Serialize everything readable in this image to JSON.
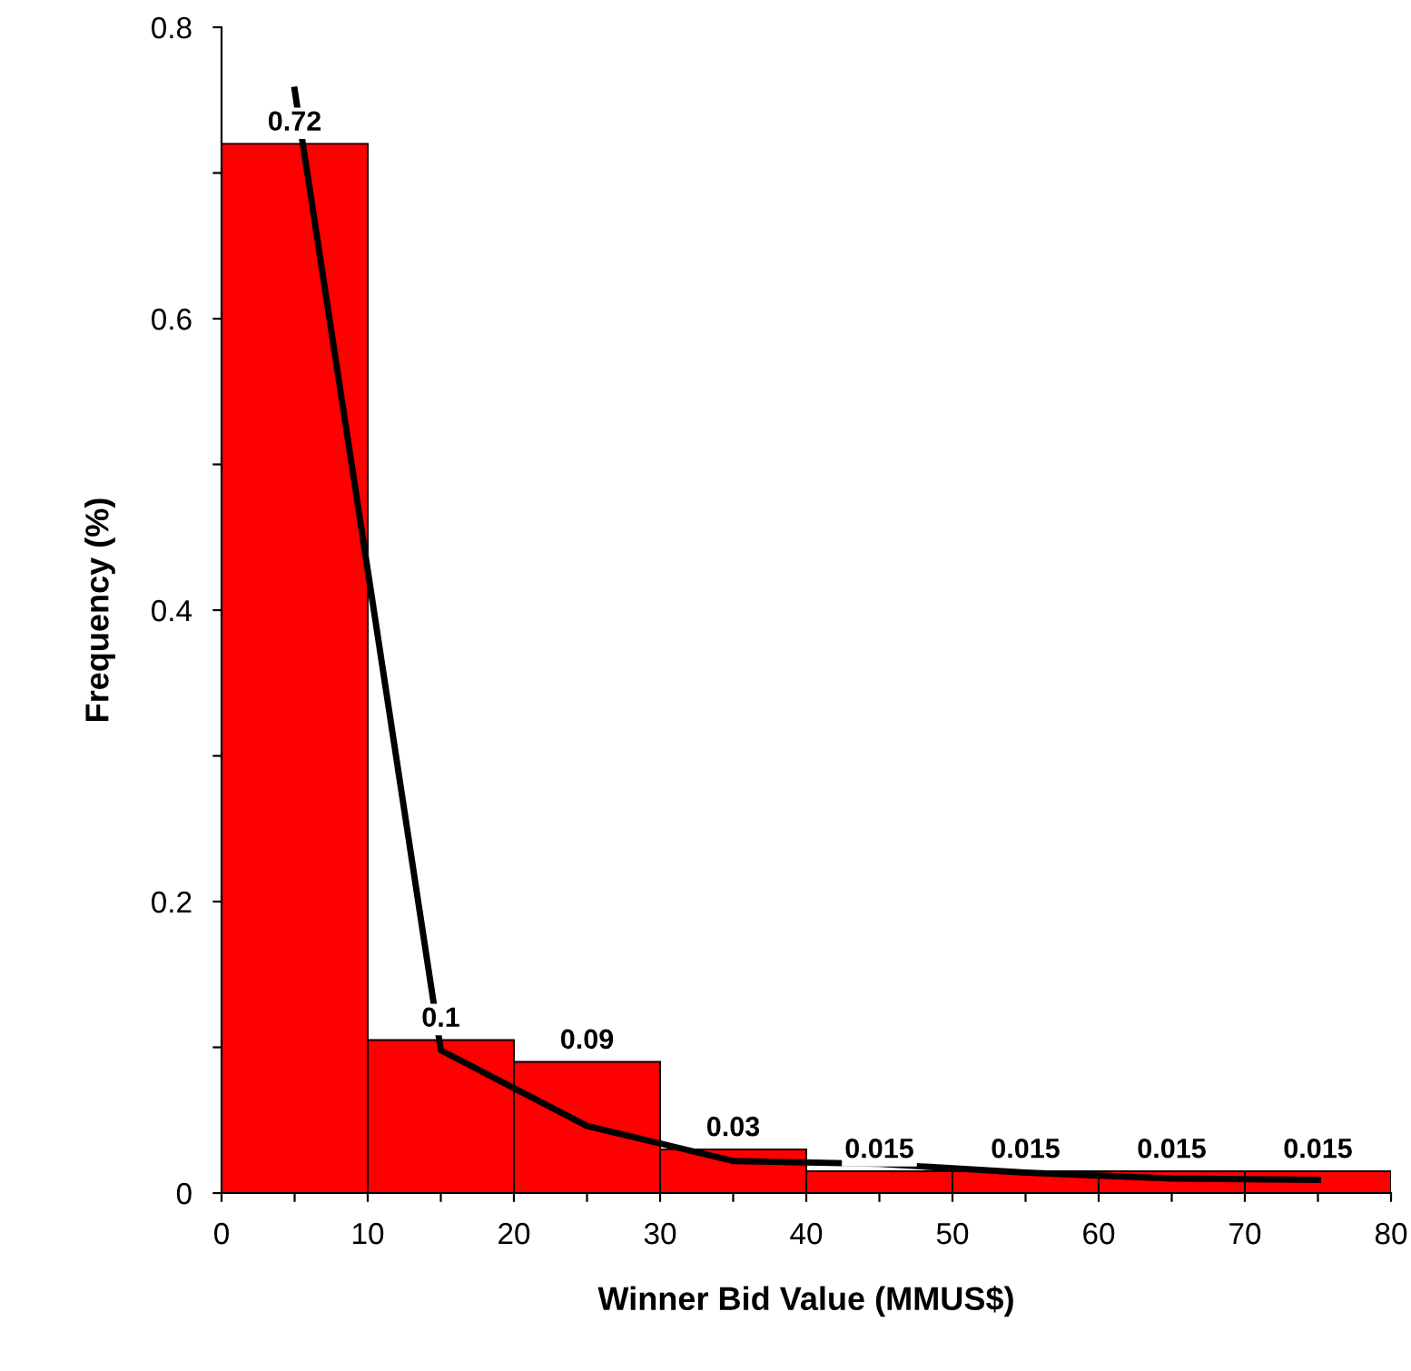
{
  "chart_data": {
    "type": "histogram",
    "xlabel": "Winner Bid Value (MMUS$)",
    "ylabel": "Frequency (%)",
    "bins": [
      0,
      10,
      20,
      30,
      40,
      50,
      60,
      70,
      80
    ],
    "values": [
      0.72,
      0.105,
      0.09,
      0.03,
      0.015,
      0.015,
      0.015,
      0.015
    ],
    "value_labels": [
      "0.72",
      "0.1",
      "0.09",
      "0.03",
      "0.015",
      "0.015",
      "0.015",
      "0.015"
    ],
    "color": "#ff0000",
    "series": [
      {
        "type": "line",
        "color": "#000000",
        "x": [
          5,
          15,
          25,
          35,
          45,
          55,
          65,
          75
        ],
        "values": [
          0.757,
          0.098,
          0.046,
          0.022,
          0.02,
          0.014,
          0.01,
          0.009
        ]
      }
    ],
    "xlim": [
      0,
      80
    ],
    "ylim": [
      0,
      0.8
    ],
    "xticks": [
      0,
      {
        "value": 5,
        "label": null
      },
      10,
      {
        "value": 15,
        "label": null
      },
      20,
      {
        "value": 25,
        "label": null
      },
      30,
      {
        "value": 35,
        "label": null
      },
      40,
      {
        "value": 45,
        "label": null
      },
      50,
      {
        "value": 55,
        "label": null
      },
      60,
      {
        "value": 65,
        "label": null
      },
      70,
      {
        "value": 75,
        "label": null
      },
      80
    ],
    "yticks": [
      0,
      {
        "value": 0.1,
        "label": null
      },
      0.2,
      {
        "value": 0.3,
        "label": null
      },
      0.4,
      {
        "value": 0.5,
        "label": null
      },
      0.6,
      {
        "value": 0.7,
        "label": null
      },
      0.8
    ],
    "grid": false,
    "legend": false
  }
}
